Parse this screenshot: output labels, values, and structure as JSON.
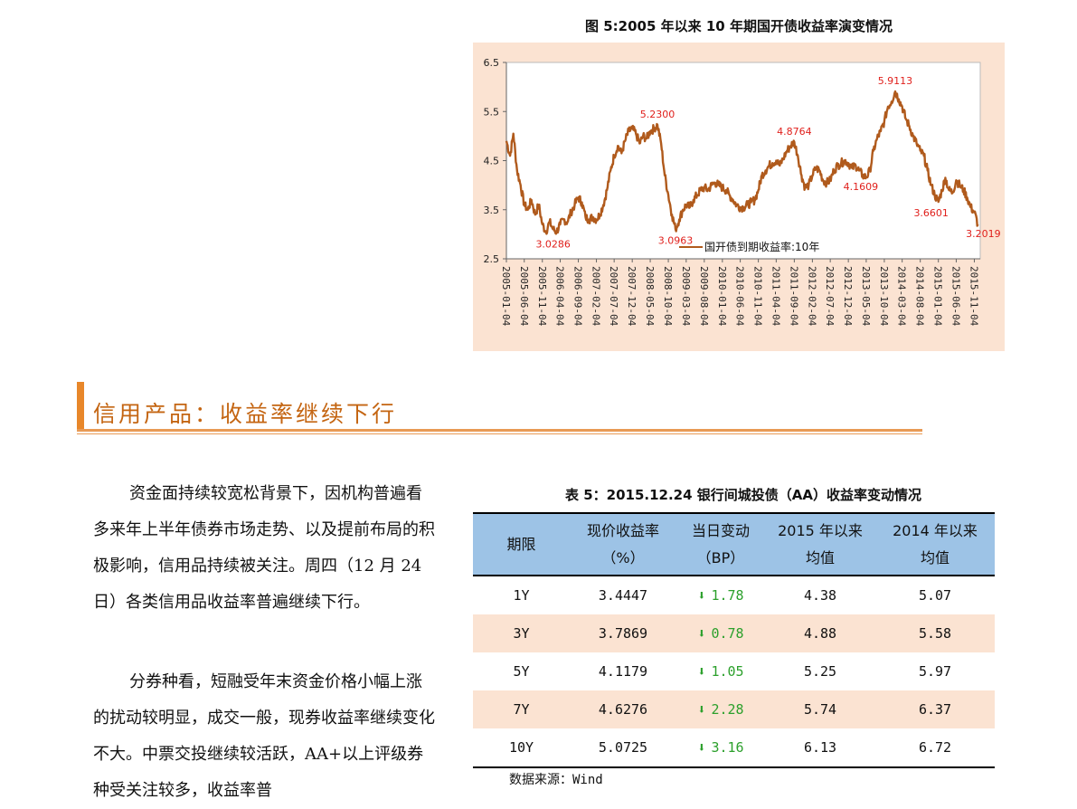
{
  "figure": {
    "title": "图 5:2005 年以来 10 年期国开债收益率演变情况",
    "legend": "国开债到期收益率:10年"
  },
  "section": {
    "title": "信用产品：收益率继续下行"
  },
  "paragraphs": [
    "资金面持续较宽松背景下，因机构普遍看多来年上半年债券市场走势、以及提前布局的积极影响，信用品持续被关注。周四（12 月 24 日）各类信用品收益率普遍继续下行。",
    "分券种看，短融受年末资金价格小幅上涨的扰动较明显，成交一般，现券收益率继续变化不大。中票交投继续较活跃，AA+以上评级券种受关注较多，收益率普"
  ],
  "table": {
    "title": "表 5：2015.12.24 银行间城投债（AA）收益率变动情况",
    "headers": [
      [
        "期限",
        ""
      ],
      [
        "现价收益率",
        "（%）"
      ],
      [
        "当日变动",
        "（BP）"
      ],
      [
        "2015 年以来",
        "均值"
      ],
      [
        "2014 年以来",
        "均值"
      ]
    ],
    "rows": [
      {
        "term": "1Y",
        "yield": "3.4447",
        "change": "1.78",
        "avg2015": "4.38",
        "avg2014": "5.07"
      },
      {
        "term": "3Y",
        "yield": "3.7869",
        "change": "0.78",
        "avg2015": "4.88",
        "avg2014": "5.58"
      },
      {
        "term": "5Y",
        "yield": "4.1179",
        "change": "1.05",
        "avg2015": "5.25",
        "avg2014": "5.97"
      },
      {
        "term": "7Y",
        "yield": "4.6276",
        "change": "2.28",
        "avg2015": "5.74",
        "avg2014": "6.37"
      },
      {
        "term": "10Y",
        "yield": "5.0725",
        "change": "3.16",
        "avg2015": "6.13",
        "avg2014": "6.72"
      }
    ],
    "source": "数据来源：Wind"
  },
  "chart_data": {
    "type": "line",
    "title": "图 5:2005 年以来 10 年期国开债收益率演变情况",
    "ylim": [
      2.5,
      6.5
    ],
    "yticks": [
      "2.5",
      "3.5",
      "4.5",
      "5.5",
      "6.5"
    ],
    "xticks": [
      "2005-01-04",
      "2005-06-04",
      "2005-11-04",
      "2006-04-04",
      "2006-09-04",
      "2007-02-04",
      "2007-07-04",
      "2007-12-04",
      "2008-05-04",
      "2008-10-04",
      "2009-03-04",
      "2009-08-04",
      "2010-01-04",
      "2010-06-04",
      "2010-11-04",
      "2011-04-04",
      "2011-09-04",
      "2012-02-04",
      "2012-07-04",
      "2012-12-04",
      "2013-05-04",
      "2013-10-04",
      "2014-03-04",
      "2014-08-04",
      "2015-01-04",
      "2015-06-04",
      "2015-11-04"
    ],
    "series": [
      {
        "name": "国开债到期收益率:10年",
        "color": "#b05a1c",
        "points": [
          [
            "2005-01-04",
            4.9
          ],
          [
            "2005-02-04",
            4.6
          ],
          [
            "2005-03-04",
            5.05
          ],
          [
            "2005-04-04",
            4.3
          ],
          [
            "2005-05-04",
            4.0
          ],
          [
            "2005-06-04",
            3.6
          ],
          [
            "2005-07-04",
            3.5
          ],
          [
            "2005-08-04",
            3.7
          ],
          [
            "2005-09-04",
            3.4
          ],
          [
            "2005-10-04",
            3.6
          ],
          [
            "2005-11-04",
            3.2
          ],
          [
            "2005-12-04",
            3.05
          ],
          [
            "2006-01-04",
            3.25
          ],
          [
            "2006-02-04",
            3.1
          ],
          [
            "2006-03-04",
            3.05
          ],
          [
            "2006-04-04",
            3.2
          ],
          [
            "2006-05-04",
            3.3
          ],
          [
            "2006-06-04",
            3.25
          ],
          [
            "2006-07-04",
            3.45
          ],
          [
            "2006-08-04",
            3.6
          ],
          [
            "2006-09-04",
            3.75
          ],
          [
            "2006-10-04",
            3.65
          ],
          [
            "2006-11-04",
            3.35
          ],
          [
            "2006-12-04",
            3.3
          ],
          [
            "2007-01-04",
            3.35
          ],
          [
            "2007-02-04",
            3.3
          ],
          [
            "2007-03-04",
            3.4
          ],
          [
            "2007-04-04",
            3.6
          ],
          [
            "2007-05-04",
            3.9
          ],
          [
            "2007-06-04",
            4.3
          ],
          [
            "2007-07-04",
            4.6
          ],
          [
            "2007-08-04",
            4.8
          ],
          [
            "2007-09-04",
            4.65
          ],
          [
            "2007-10-04",
            4.9
          ],
          [
            "2007-11-04",
            5.1
          ],
          [
            "2007-12-04",
            5.15
          ],
          [
            "2008-01-04",
            5.05
          ],
          [
            "2008-02-04",
            4.85
          ],
          [
            "2008-03-04",
            5.0
          ],
          [
            "2008-04-04",
            4.95
          ],
          [
            "2008-05-04",
            5.1
          ],
          [
            "2008-06-04",
            5.15
          ],
          [
            "2008-07-04",
            5.23
          ],
          [
            "2008-08-04",
            4.85
          ],
          [
            "2008-09-04",
            4.2
          ],
          [
            "2008-10-04",
            3.8
          ],
          [
            "2008-11-04",
            3.4
          ],
          [
            "2008-12-04",
            3.1
          ],
          [
            "2009-01-04",
            3.3
          ],
          [
            "2009-02-04",
            3.5
          ],
          [
            "2009-03-04",
            3.6
          ],
          [
            "2009-04-04",
            3.55
          ],
          [
            "2009-05-04",
            3.7
          ],
          [
            "2009-06-04",
            3.8
          ],
          [
            "2009-07-04",
            3.9
          ],
          [
            "2009-08-04",
            3.95
          ],
          [
            "2009-09-04",
            3.9
          ],
          [
            "2009-10-04",
            4.0
          ],
          [
            "2009-11-04",
            4.05
          ],
          [
            "2009-12-04",
            4.0
          ],
          [
            "2010-01-04",
            3.95
          ],
          [
            "2010-02-04",
            3.9
          ],
          [
            "2010-03-04",
            3.8
          ],
          [
            "2010-04-04",
            3.7
          ],
          [
            "2010-05-04",
            3.6
          ],
          [
            "2010-06-04",
            3.55
          ],
          [
            "2010-07-04",
            3.55
          ],
          [
            "2010-08-04",
            3.6
          ],
          [
            "2010-09-04",
            3.65
          ],
          [
            "2010-10-04",
            3.7
          ],
          [
            "2010-11-04",
            3.9
          ],
          [
            "2010-12-04",
            4.2
          ],
          [
            "2011-01-04",
            4.3
          ],
          [
            "2011-02-04",
            4.4
          ],
          [
            "2011-03-04",
            4.45
          ],
          [
            "2011-04-04",
            4.5
          ],
          [
            "2011-05-04",
            4.4
          ],
          [
            "2011-06-04",
            4.55
          ],
          [
            "2011-07-04",
            4.7
          ],
          [
            "2011-08-04",
            4.8
          ],
          [
            "2011-09-04",
            4.88
          ],
          [
            "2011-10-04",
            4.6
          ],
          [
            "2011-11-04",
            4.2
          ],
          [
            "2011-12-04",
            3.95
          ],
          [
            "2012-01-04",
            4.0
          ],
          [
            "2012-02-04",
            4.2
          ],
          [
            "2012-03-04",
            4.35
          ],
          [
            "2012-04-04",
            4.3
          ],
          [
            "2012-05-04",
            4.1
          ],
          [
            "2012-06-04",
            4.05
          ],
          [
            "2012-07-04",
            4.1
          ],
          [
            "2012-08-04",
            4.3
          ],
          [
            "2012-09-04",
            4.4
          ],
          [
            "2012-10-04",
            4.45
          ],
          [
            "2012-11-04",
            4.5
          ],
          [
            "2012-12-04",
            4.45
          ],
          [
            "2013-01-04",
            4.35
          ],
          [
            "2013-02-04",
            4.4
          ],
          [
            "2013-03-04",
            4.3
          ],
          [
            "2013-04-04",
            4.2
          ],
          [
            "2013-05-04",
            4.16
          ],
          [
            "2013-06-04",
            4.3
          ],
          [
            "2013-07-04",
            4.7
          ],
          [
            "2013-08-04",
            4.95
          ],
          [
            "2013-09-04",
            5.1
          ],
          [
            "2013-10-04",
            5.3
          ],
          [
            "2013-11-04",
            5.6
          ],
          [
            "2013-12-04",
            5.7
          ],
          [
            "2014-01-04",
            5.911
          ],
          [
            "2014-02-04",
            5.75
          ],
          [
            "2014-03-04",
            5.6
          ],
          [
            "2014-04-04",
            5.35
          ],
          [
            "2014-05-04",
            5.2
          ],
          [
            "2014-06-04",
            5.0
          ],
          [
            "2014-07-04",
            4.85
          ],
          [
            "2014-08-04",
            4.7
          ],
          [
            "2014-09-04",
            4.6
          ],
          [
            "2014-10-04",
            4.3
          ],
          [
            "2014-11-04",
            4.0
          ],
          [
            "2014-12-04",
            3.8
          ],
          [
            "2015-01-04",
            3.66
          ],
          [
            "2015-02-04",
            3.9
          ],
          [
            "2015-03-04",
            4.15
          ],
          [
            "2015-04-04",
            3.9
          ],
          [
            "2015-05-04",
            3.85
          ],
          [
            "2015-06-04",
            4.1
          ],
          [
            "2015-07-04",
            4.0
          ],
          [
            "2015-08-04",
            3.9
          ],
          [
            "2015-09-04",
            3.75
          ],
          [
            "2015-10-04",
            3.55
          ],
          [
            "2015-11-04",
            3.45
          ],
          [
            "2015-12-04",
            3.2019
          ]
        ]
      }
    ],
    "annotations": [
      {
        "date": "2005-12-04",
        "value": 3.0286,
        "label": "3.0286"
      },
      {
        "date": "2008-07-04",
        "value": 5.23,
        "label": "5.2300"
      },
      {
        "date": "2008-12-04",
        "value": 3.0963,
        "label": "3.0963"
      },
      {
        "date": "2011-09-04",
        "value": 4.8764,
        "label": "4.8764"
      },
      {
        "date": "2013-05-04",
        "value": 4.1609,
        "label": "4.1609"
      },
      {
        "date": "2014-01-04",
        "value": 5.9113,
        "label": "5.9113"
      },
      {
        "date": "2015-01-04",
        "value": 3.6601,
        "label": "3.6601"
      },
      {
        "date": "2015-12-04",
        "value": 3.2019,
        "label": "3.2019"
      }
    ]
  }
}
